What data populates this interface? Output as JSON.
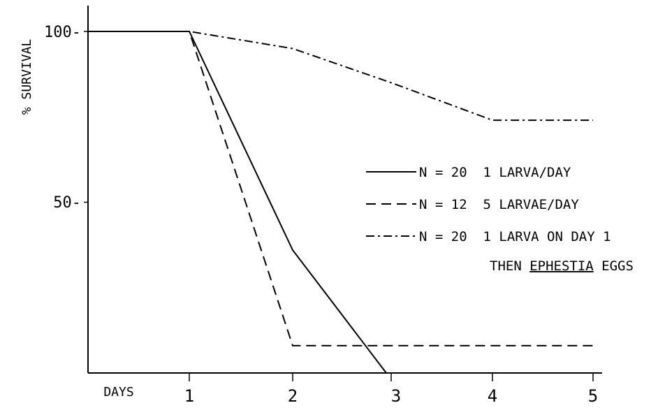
{
  "chart_data": {
    "type": "line",
    "title": "",
    "xlabel": "DAYS",
    "ylabel": "% SURVIVAL",
    "xlim": [
      0,
      5
    ],
    "ylim": [
      0,
      100
    ],
    "x_ticks": [
      "1",
      "2",
      "3",
      "4",
      "5"
    ],
    "y_ticks": [
      {
        "value": 100,
        "label": "100-"
      },
      {
        "value": 50,
        "label": "50-"
      }
    ],
    "grid": false,
    "legend_position": "right",
    "series": [
      {
        "name": "N = 20  1 LARVA/DAY",
        "style": "solid",
        "x": [
          0,
          1,
          2,
          2.95,
          5
        ],
        "y": [
          100,
          100,
          36,
          0,
          0
        ]
      },
      {
        "name": "N = 12  5 LARVAE/DAY",
        "style": "dashed",
        "x": [
          0,
          1,
          2,
          5
        ],
        "y": [
          100,
          100,
          8,
          8
        ]
      },
      {
        "name": "N = 20  1 LARVA ON DAY 1",
        "name_line2_prefix": "THEN ",
        "name_line2_underlined": "EPHESTIA",
        "name_line2_suffix": " EGGS",
        "style": "dashdot",
        "x": [
          0,
          1,
          2,
          3,
          4,
          5
        ],
        "y": [
          100,
          100,
          95,
          85,
          74,
          74
        ]
      }
    ]
  }
}
